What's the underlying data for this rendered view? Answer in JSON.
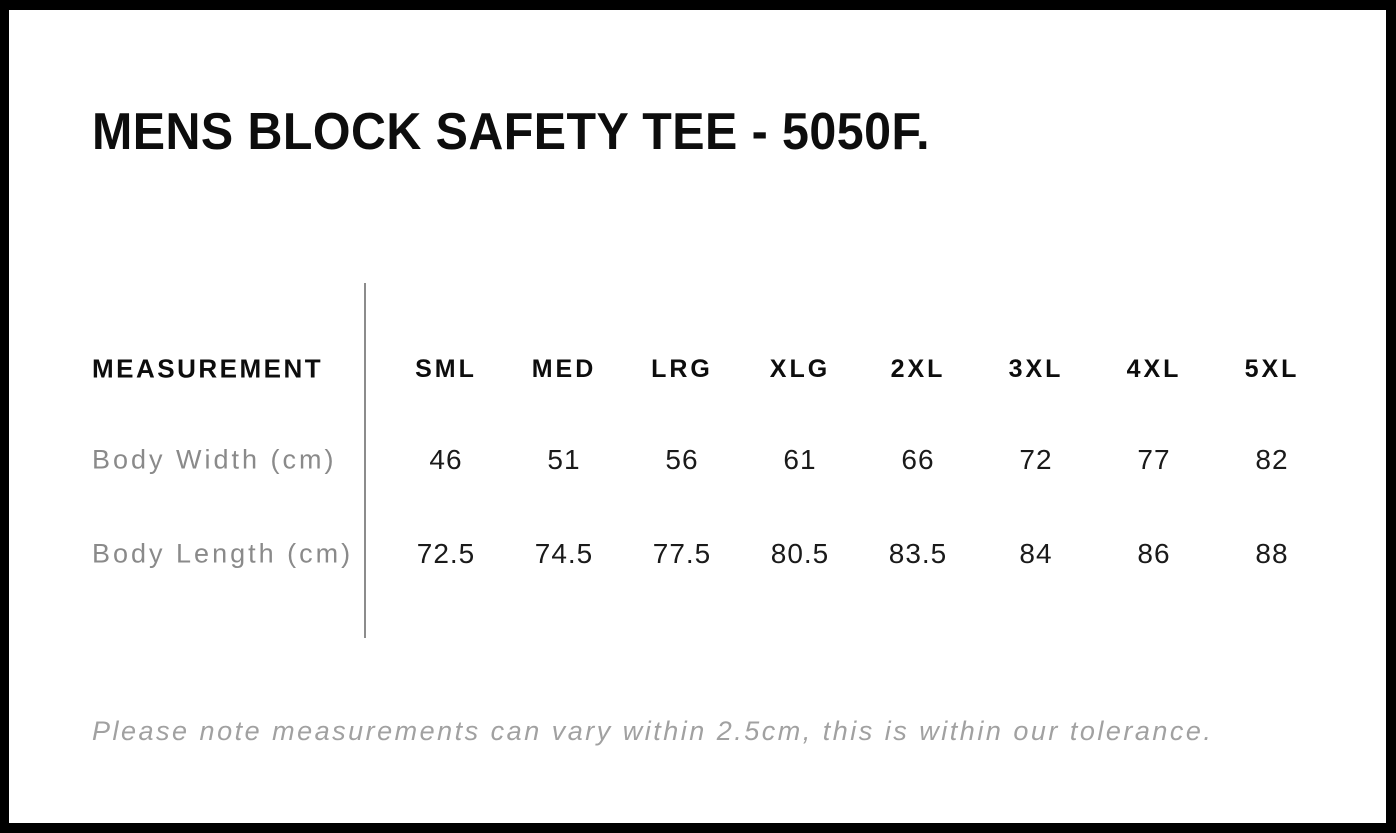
{
  "page": {
    "title": "MENS BLOCK SAFETY TEE - 5050F.",
    "tolerance_note": "Please note measurements can vary within 2.5cm, this is within our tolerance."
  },
  "size_chart": {
    "header_label": "MEASUREMENT",
    "sizes": [
      "SML",
      "MED",
      "LRG",
      "XLG",
      "2XL",
      "3XL",
      "4XL",
      "5XL"
    ],
    "rows": [
      {
        "label": "Body Width (cm)",
        "values": [
          "46",
          "51",
          "56",
          "61",
          "66",
          "72",
          "77",
          "82"
        ]
      },
      {
        "label": "Body Length (cm)",
        "values": [
          "72.5",
          "74.5",
          "77.5",
          "80.5",
          "83.5",
          "84",
          "86",
          "88"
        ]
      }
    ]
  },
  "colors": {
    "frame": "#000000",
    "background": "#ffffff",
    "heading_text": "#0d0d0d",
    "value_text": "#1a1a1a",
    "row_label_text": "#8a8a8a",
    "note_text": "#a1a1a1",
    "divider": "#8c8c8c"
  }
}
